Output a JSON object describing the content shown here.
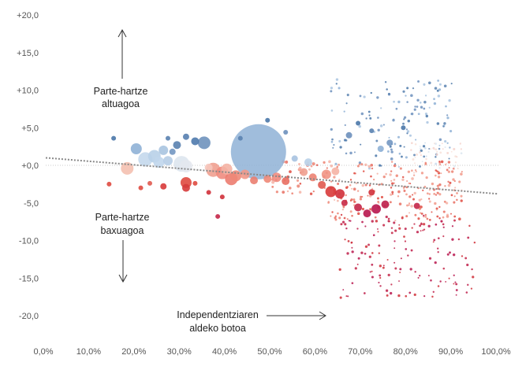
{
  "chart_data": {
    "type": "scatter",
    "title": "",
    "xlabel": "",
    "ylabel": "",
    "xlim": [
      0,
      100
    ],
    "ylim": [
      -22,
      22
    ],
    "x_ticks": [
      0,
      10,
      20,
      30,
      40,
      50,
      60,
      70,
      80,
      90,
      100
    ],
    "x_tick_labels": [
      "0,0%",
      "10,0%",
      "20,0%",
      "30,0%",
      "40,0%",
      "50,0%",
      "60,0%",
      "70,0%",
      "80,0%",
      "90,0%",
      "100,0%"
    ],
    "y_ticks": [
      20,
      15,
      10,
      5,
      0,
      -5,
      -10,
      -15,
      -20
    ],
    "y_tick_labels": [
      "+20,0",
      "+15,0",
      "+10,0",
      "+5,0",
      "+0,0",
      "-5,0",
      "-10,0",
      "-15,0",
      "-20,0"
    ],
    "grid": false,
    "zero_line": true,
    "trendline": {
      "x": [
        0,
        100
      ],
      "y": [
        1.0,
        -3.8
      ],
      "style": "dotted",
      "color": "#888888"
    },
    "color_scale": {
      "high": "#4a77a8",
      "low": "#b8164e",
      "mid": "#f0f0f0"
    },
    "annotations": {
      "higher": {
        "lines": [
          "Parte-hartze",
          "altuagoa"
        ],
        "arrow": "up"
      },
      "lower": {
        "lines": [
          "Parte-hartze",
          "baxuagoa"
        ],
        "arrow": "down"
      },
      "independence": {
        "lines": [
          "Independentziaren",
          "aldeko botoa"
        ],
        "arrow": "right"
      }
    },
    "points": [
      [
        47,
        1.8,
        35,
        "#8fb1d6"
      ],
      [
        35,
        3.0,
        8,
        "#6f92bc"
      ],
      [
        20,
        2.2,
        7,
        "#8fb1d6"
      ],
      [
        24,
        1.2,
        8,
        "#b8d0e8"
      ],
      [
        26,
        2.0,
        6,
        "#a9c4e0"
      ],
      [
        22,
        0.8,
        9,
        "#c4d8ec"
      ],
      [
        25,
        0.4,
        7,
        "#c0d6ec"
      ],
      [
        30,
        0.2,
        10,
        "#dde5ee"
      ],
      [
        31,
        -0.1,
        8,
        "#e4e8ee"
      ],
      [
        27,
        0.6,
        6,
        "#b6cde6"
      ],
      [
        33,
        3.2,
        5,
        "#4f7aad"
      ],
      [
        29,
        2.7,
        5,
        "#5a82b0"
      ],
      [
        31,
        3.8,
        4,
        "#5880b0"
      ],
      [
        28,
        1.8,
        4,
        "#7397c2"
      ],
      [
        18,
        -0.4,
        8,
        "#f4c0b0"
      ],
      [
        37,
        -0.6,
        9,
        "#f0a090"
      ],
      [
        39,
        -1.0,
        8,
        "#ef8c80"
      ],
      [
        41,
        -1.8,
        8,
        "#ec7c70"
      ],
      [
        42,
        -1.4,
        7,
        "#ee8878"
      ],
      [
        44,
        -1.2,
        6,
        "#f19888"
      ],
      [
        40,
        -0.5,
        7,
        "#f4b2a4"
      ],
      [
        36,
        -0.3,
        5,
        "#f6c6bc"
      ],
      [
        31,
        -2.3,
        7,
        "#df4a40"
      ],
      [
        31,
        -3.0,
        5,
        "#d63c3c"
      ],
      [
        58,
        0.4,
        5,
        "#b8d0e8"
      ],
      [
        55,
        0.9,
        4,
        "#a7c2e0"
      ],
      [
        57,
        -0.9,
        5,
        "#f0a090"
      ],
      [
        59,
        -1.6,
        5,
        "#ec8272"
      ],
      [
        62,
        -1.2,
        6,
        "#f19484"
      ],
      [
        64,
        -0.8,
        5,
        "#f5b2a4"
      ],
      [
        63,
        -3.5,
        7,
        "#d83a3a"
      ],
      [
        65,
        -3.8,
        6,
        "#d0303a"
      ],
      [
        61,
        -2.6,
        5,
        "#e05a50"
      ],
      [
        51,
        -1.6,
        6,
        "#ef8c80"
      ],
      [
        53,
        -2.1,
        5,
        "#e86e62"
      ],
      [
        49,
        -1.8,
        5,
        "#ee8878"
      ],
      [
        46,
        -2.0,
        5,
        "#ea7e70"
      ],
      [
        15,
        3.6,
        3,
        "#4a77a8"
      ],
      [
        49,
        6.0,
        3,
        "#4a77a8"
      ],
      [
        53,
        4.4,
        3,
        "#6d90bd"
      ],
      [
        43,
        3.6,
        3,
        "#5a82b0"
      ],
      [
        27,
        3.6,
        3,
        "#5a82b0"
      ],
      [
        14,
        -2.5,
        3,
        "#df4a40"
      ],
      [
        21,
        -3.0,
        3,
        "#df4a40"
      ],
      [
        23,
        -2.4,
        3,
        "#e05a50"
      ],
      [
        26,
        -2.8,
        4,
        "#d83a3a"
      ],
      [
        33,
        -2.4,
        3,
        "#df4a40"
      ],
      [
        36,
        -3.6,
        3,
        "#d0303a"
      ],
      [
        39,
        -4.2,
        3,
        "#d0303a"
      ],
      [
        38,
        -6.8,
        3,
        "#c42648"
      ],
      [
        69,
        -5.6,
        5,
        "#c42648"
      ],
      [
        73,
        -5.8,
        6,
        "#b8164e"
      ],
      [
        75,
        -5.2,
        5,
        "#be1e4a"
      ],
      [
        71,
        -6.4,
        5,
        "#b8164e"
      ],
      [
        82,
        -5.4,
        4,
        "#c42648"
      ],
      [
        66,
        -5.0,
        4,
        "#c82a46"
      ],
      [
        72,
        -3.6,
        4,
        "#d0303a"
      ],
      [
        67,
        4.0,
        4,
        "#6d90bd"
      ],
      [
        69,
        5.6,
        3,
        "#4a77a8"
      ],
      [
        72,
        4.6,
        3,
        "#5a82b0"
      ],
      [
        76,
        3.0,
        4,
        "#7397c2"
      ],
      [
        79,
        5.0,
        3,
        "#4a77a8"
      ],
      [
        74,
        2.2,
        4,
        "#8fb1d6"
      ]
    ],
    "scatter_regions": [
      [
        63,
        90,
        -0.5,
        11.5,
        140,
        "blue",
        1.4
      ],
      [
        62,
        92,
        -7.5,
        0.5,
        220,
        "red",
        1.4
      ],
      [
        65,
        95,
        -18.0,
        -6.5,
        150,
        "darkred",
        1.3
      ],
      [
        50,
        65,
        -4.0,
        0.5,
        45,
        "red",
        1.6
      ],
      [
        80,
        92,
        -1.0,
        3.0,
        50,
        "pale",
        1.2
      ]
    ]
  }
}
